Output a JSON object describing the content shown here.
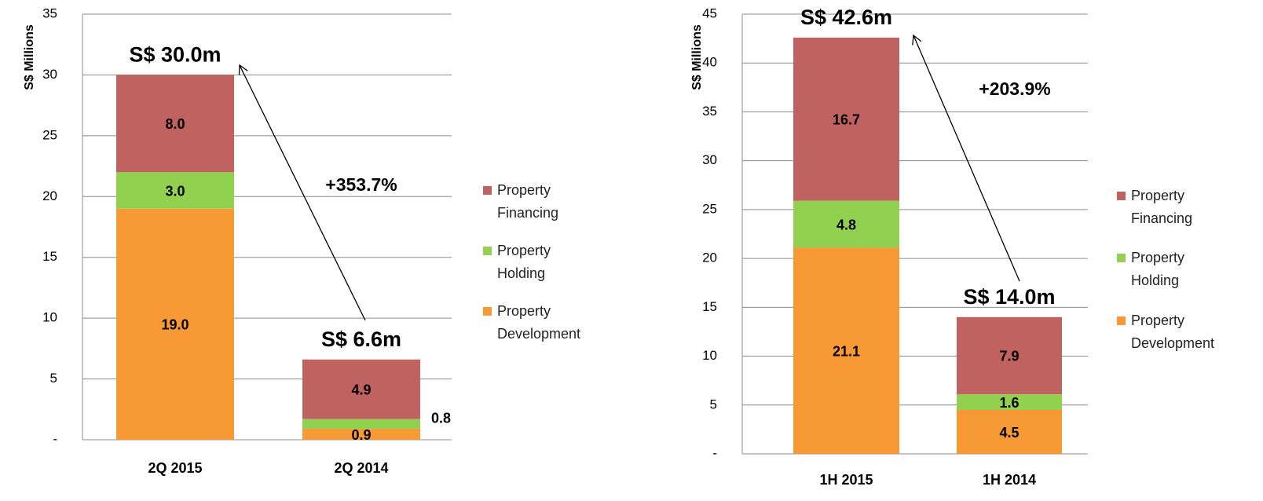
{
  "chart_data": [
    {
      "type": "stacked_bar",
      "y_label": "S$ Millions",
      "categories": [
        "2Q 2015",
        "2Q 2014"
      ],
      "series": [
        {
          "name": "Property Development",
          "color": "#f79a35",
          "values": [
            19.0,
            0.9
          ],
          "value_labels": [
            "19.0",
            "0.9"
          ]
        },
        {
          "name": "Property Holding",
          "color": "#92d050",
          "values": [
            3.0,
            0.8
          ],
          "value_labels": [
            "3.0",
            "0.8"
          ]
        },
        {
          "name": "Property Financing",
          "color": "#c0625f",
          "values": [
            8.0,
            4.9
          ],
          "value_labels": [
            "8.0",
            "4.9"
          ]
        }
      ],
      "total_labels": [
        "S$ 30.0m",
        "S$ 6.6m"
      ],
      "annotation": "+353.7%",
      "ylim": [
        0,
        35
      ],
      "yticks": [
        {
          "value": 0,
          "label": "-"
        },
        5,
        10,
        15,
        20,
        25,
        30,
        35
      ],
      "grid": true,
      "legend": "right"
    },
    {
      "type": "stacked_bar",
      "y_label": "S$ Millions",
      "categories": [
        "1H 2015",
        "1H 2014"
      ],
      "series": [
        {
          "name": "Property Development",
          "color": "#f79a35",
          "values": [
            21.1,
            4.5
          ],
          "value_labels": [
            "21.1",
            "4.5"
          ]
        },
        {
          "name": "Property Holding",
          "color": "#92d050",
          "values": [
            4.8,
            1.6
          ],
          "value_labels": [
            "4.8",
            "1.6"
          ]
        },
        {
          "name": "Property Financing",
          "color": "#c0625f",
          "values": [
            16.7,
            7.9
          ],
          "value_labels": [
            "16.7",
            "7.9"
          ]
        }
      ],
      "total_labels": [
        "S$ 42.6m",
        "S$ 14.0m"
      ],
      "annotation": "+203.9%",
      "ylim": [
        0,
        45
      ],
      "yticks": [
        {
          "value": 0,
          "label": "-"
        },
        5,
        10,
        15,
        20,
        25,
        30,
        35,
        40,
        45
      ],
      "grid": true,
      "legend": "right"
    }
  ]
}
